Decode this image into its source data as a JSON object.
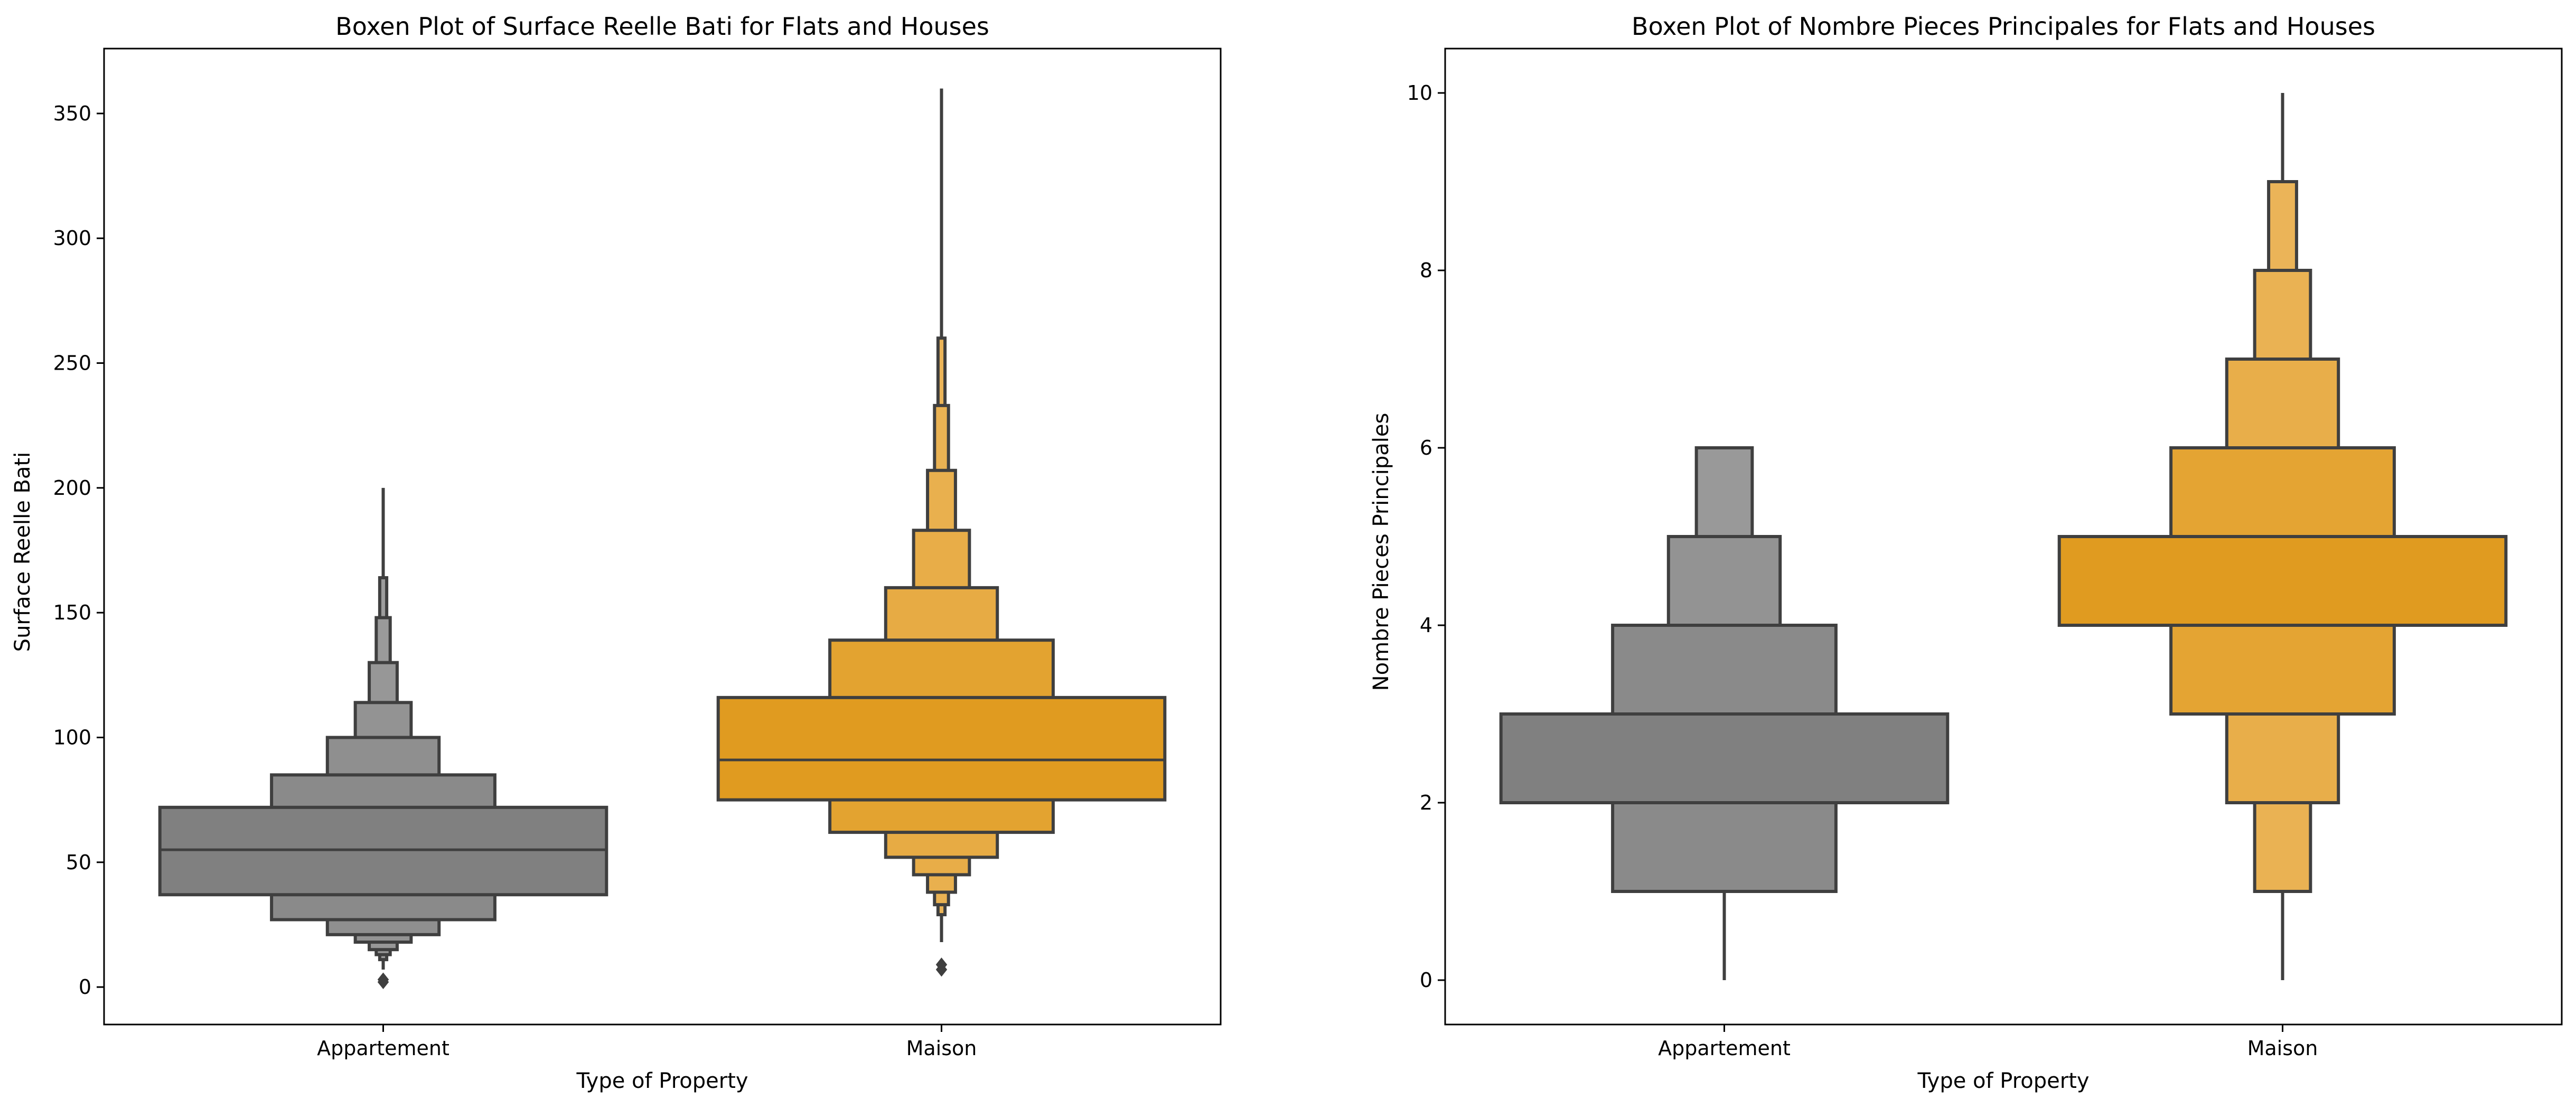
{
  "chart_data": [
    {
      "type": "boxen",
      "title": "Boxen Plot of Surface Reelle Bati for Flats and Houses",
      "xlabel": "Type of Property",
      "ylabel": "Surface Reelle Bati",
      "ylim": [
        -15,
        376
      ],
      "yticks": [
        0,
        50,
        100,
        150,
        200,
        250,
        300,
        350
      ],
      "categories": [
        "Appartement",
        "Maison"
      ],
      "series": [
        {
          "category": "Appartement",
          "color": "#808080",
          "median": 55,
          "boxes": [
            {
              "low": 37,
              "high": 72,
              "color": "#808080"
            },
            {
              "low": 27,
              "high": 85,
              "color": "#8a8a8a"
            },
            {
              "low": 21,
              "high": 100,
              "color": "#8f8f8f"
            },
            {
              "low": 18,
              "high": 114,
              "color": "#939393"
            },
            {
              "low": 15,
              "high": 130,
              "color": "#979797"
            },
            {
              "low": 13,
              "high": 148,
              "color": "#9a9a9a"
            },
            {
              "low": 11,
              "high": 164,
              "color": "#9d9d9d"
            }
          ],
          "tail": [
            7,
            200
          ],
          "outliers": [
            2,
            3
          ]
        },
        {
          "category": "Maison",
          "color": "#e09b20",
          "median": 91,
          "boxes": [
            {
              "low": 75,
              "high": 116,
              "color": "#e09b20"
            },
            {
              "low": 62,
              "high": 139,
              "color": "#e3a330"
            },
            {
              "low": 52,
              "high": 160,
              "color": "#e7ab44"
            },
            {
              "low": 45,
              "high": 183,
              "color": "#e8ad48"
            },
            {
              "low": 38,
              "high": 207,
              "color": "#e9b04e"
            },
            {
              "low": 33,
              "high": 233,
              "color": "#eab253"
            },
            {
              "low": 29,
              "high": 260,
              "color": "#ebb458"
            }
          ],
          "tail": [
            18,
            360
          ],
          "outliers": [
            7,
            9
          ]
        }
      ]
    },
    {
      "type": "boxen",
      "title": "Boxen Plot of Nombre Pieces Principales for Flats and Houses",
      "xlabel": "Type of Property",
      "ylabel": "Nombre Pieces Principales",
      "ylim": [
        -0.5,
        10.5
      ],
      "yticks": [
        0,
        2,
        4,
        6,
        8,
        10
      ],
      "categories": [
        "Appartement",
        "Maison"
      ],
      "series": [
        {
          "category": "Appartement",
          "color": "#808080",
          "median": 3,
          "boxes": [
            {
              "low": 2,
              "high": 3,
              "color": "#808080"
            },
            {
              "low": 1,
              "high": 4,
              "color": "#8a8a8a"
            },
            {
              "low": 1,
              "high": 5,
              "color": "#939393"
            },
            {
              "low": 1,
              "high": 6,
              "color": "#999999"
            }
          ],
          "tail": [
            0,
            6
          ],
          "outliers": []
        },
        {
          "category": "Maison",
          "color": "#e09b20",
          "median": 5,
          "boxes": [
            {
              "low": 4,
              "high": 5,
              "color": "#e09b20"
            },
            {
              "low": 3,
              "high": 6,
              "color": "#e4a433"
            },
            {
              "low": 2,
              "high": 7,
              "color": "#e8ae4a"
            },
            {
              "low": 1,
              "high": 8,
              "color": "#eab253"
            },
            {
              "low": 1,
              "high": 9,
              "color": "#ebb458"
            }
          ],
          "tail": [
            0,
            10
          ],
          "outliers": []
        }
      ]
    }
  ]
}
